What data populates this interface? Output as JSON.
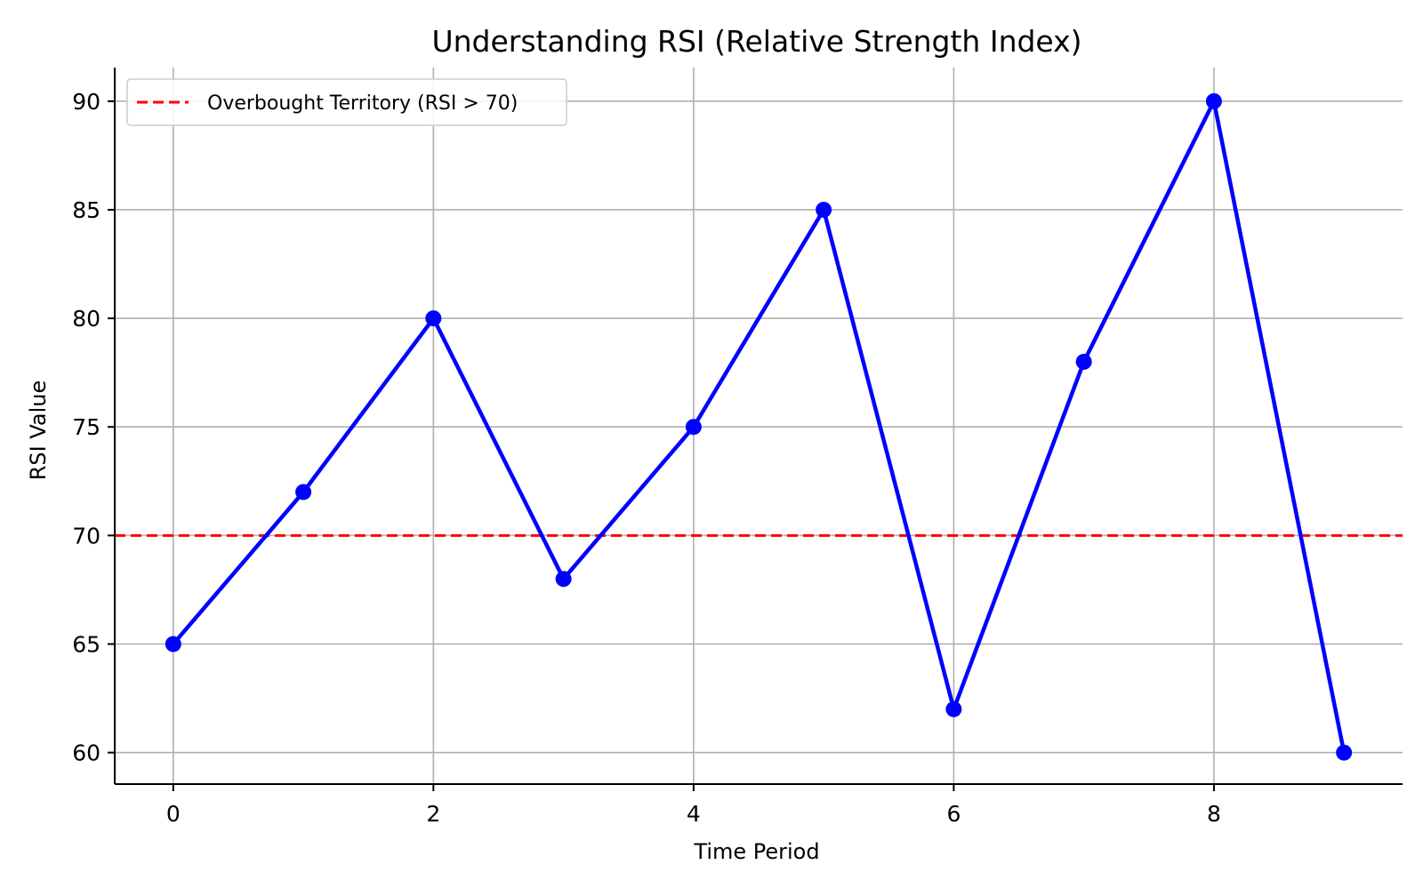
{
  "chart_data": {
    "type": "line",
    "title": "Understanding RSI (Relative Strength Index)",
    "xlabel": "Time Period",
    "ylabel": "RSI Value",
    "x": [
      0,
      1,
      2,
      3,
      4,
      5,
      6,
      7,
      8,
      9
    ],
    "series": [
      {
        "values": [
          65,
          72,
          80,
          68,
          75,
          85,
          62,
          78,
          90,
          60
        ],
        "color": "#0000ff",
        "marker": "circle"
      }
    ],
    "reference_lines": [
      {
        "orientation": "horizontal",
        "y": 70,
        "style": "dashed",
        "color": "#ff0000",
        "label": "Overbought Territory (RSI > 70)"
      }
    ],
    "xlim": [
      -0.45,
      9.45
    ],
    "ylim": [
      58.55,
      91.55
    ],
    "x_ticks": [
      0,
      2,
      4,
      6,
      8
    ],
    "y_ticks": [
      60,
      65,
      70,
      75,
      80,
      85,
      90
    ],
    "x_tick_labels": [
      "0",
      "2",
      "4",
      "6",
      "8"
    ],
    "y_tick_labels": [
      "60",
      "65",
      "70",
      "75",
      "80",
      "85",
      "90"
    ],
    "grid": true,
    "grid_color": "#b0b0b0",
    "legend_position": "top-left",
    "spines": "left-bottom"
  }
}
